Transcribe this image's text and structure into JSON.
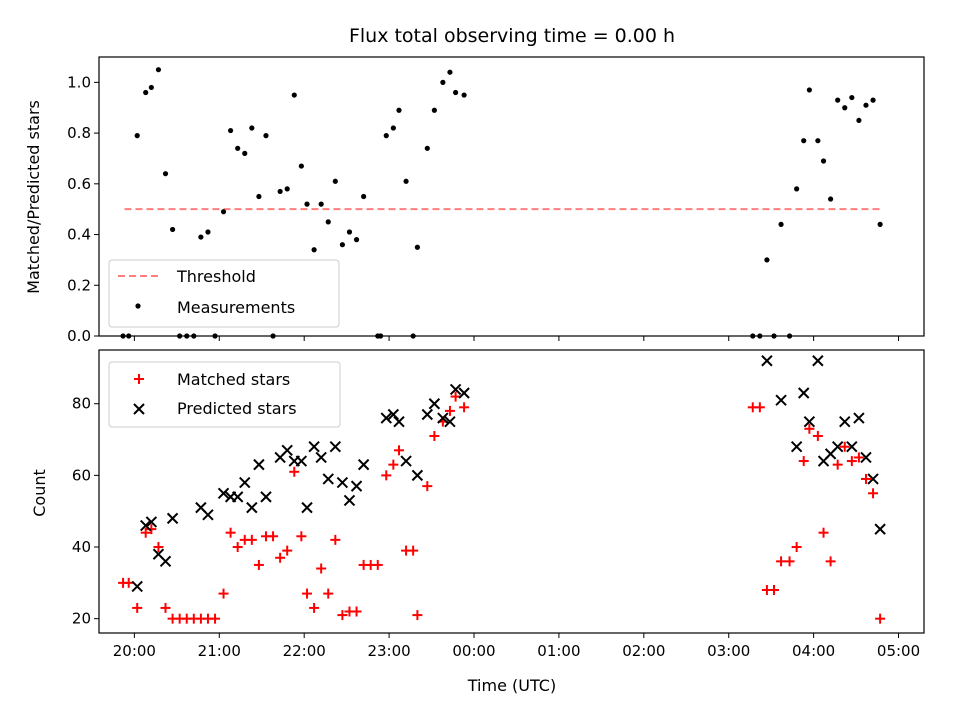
{
  "chart_data": [
    {
      "type": "scatter",
      "title": "Flux total observing time = 0.00 h",
      "xlabel": "",
      "ylabel": "Matched/Predicted stars",
      "xlim": [
        "19:35",
        "05:18"
      ],
      "ylim": [
        0,
        1.1
      ],
      "yticks": [
        0.0,
        0.2,
        0.4,
        0.6,
        0.8,
        1.0
      ],
      "ytick_labels": [
        "0.0",
        "0.2",
        "0.4",
        "0.6",
        "0.8",
        "1.0"
      ],
      "legend_position": "lower-left",
      "threshold": {
        "name": "Threshold",
        "value": 0.5,
        "x_start": "19:53",
        "x_end": "04:47",
        "color": "#ff7f7f",
        "style": "dashed"
      },
      "series": [
        {
          "name": "Measurements",
          "color": "#000000",
          "marker": "dot",
          "points": [
            [
              "19:52",
              0.0
            ],
            [
              "19:56",
              0.0
            ],
            [
              "20:02",
              0.79
            ],
            [
              "20:08",
              0.96
            ],
            [
              "20:12",
              0.98
            ],
            [
              "20:17",
              1.05
            ],
            [
              "20:22",
              0.64
            ],
            [
              "20:27",
              0.42
            ],
            [
              "20:32",
              0.0
            ],
            [
              "20:37",
              0.0
            ],
            [
              "20:42",
              0.0
            ],
            [
              "20:47",
              0.39
            ],
            [
              "20:52",
              0.41
            ],
            [
              "20:57",
              0.0
            ],
            [
              "21:03",
              0.49
            ],
            [
              "21:08",
              0.81
            ],
            [
              "21:13",
              0.74
            ],
            [
              "21:18",
              0.72
            ],
            [
              "21:23",
              0.82
            ],
            [
              "21:28",
              0.55
            ],
            [
              "21:33",
              0.79
            ],
            [
              "21:38",
              0.0
            ],
            [
              "21:43",
              0.57
            ],
            [
              "21:48",
              0.58
            ],
            [
              "21:53",
              0.95
            ],
            [
              "21:58",
              0.67
            ],
            [
              "22:02",
              0.52
            ],
            [
              "22:07",
              0.34
            ],
            [
              "22:12",
              0.52
            ],
            [
              "22:17",
              0.45
            ],
            [
              "22:22",
              0.61
            ],
            [
              "22:27",
              0.36
            ],
            [
              "22:32",
              0.41
            ],
            [
              "22:37",
              0.38
            ],
            [
              "22:42",
              0.55
            ],
            [
              "22:52",
              0.0
            ],
            [
              "22:54",
              0.0
            ],
            [
              "22:58",
              0.79
            ],
            [
              "23:03",
              0.82
            ],
            [
              "23:07",
              0.89
            ],
            [
              "23:12",
              0.61
            ],
            [
              "23:17",
              0.0
            ],
            [
              "23:20",
              0.35
            ],
            [
              "23:27",
              0.74
            ],
            [
              "23:32",
              0.89
            ],
            [
              "23:38",
              1.0
            ],
            [
              "23:43",
              1.04
            ],
            [
              "23:47",
              0.96
            ],
            [
              "23:53",
              0.95
            ],
            [
              "03:17",
              0.0
            ],
            [
              "03:22",
              0.0
            ],
            [
              "03:27",
              0.3
            ],
            [
              "03:32",
              0.0
            ],
            [
              "03:37",
              0.44
            ],
            [
              "03:43",
              0.0
            ],
            [
              "03:48",
              0.58
            ],
            [
              "03:53",
              0.77
            ],
            [
              "03:57",
              0.97
            ],
            [
              "04:03",
              0.77
            ],
            [
              "04:07",
              0.69
            ],
            [
              "04:12",
              0.54
            ],
            [
              "04:17",
              0.93
            ],
            [
              "04:22",
              0.9
            ],
            [
              "04:27",
              0.94
            ],
            [
              "04:32",
              0.85
            ],
            [
              "04:37",
              0.91
            ],
            [
              "04:42",
              0.93
            ],
            [
              "04:47",
              0.44
            ]
          ]
        }
      ]
    },
    {
      "type": "scatter",
      "title": "",
      "xlabel": "Time (UTC)",
      "ylabel": "Count",
      "xlim": [
        "19:35",
        "05:18"
      ],
      "ylim": [
        16,
        95
      ],
      "yticks": [
        20,
        40,
        60,
        80
      ],
      "ytick_labels": [
        "20",
        "40",
        "60",
        "80"
      ],
      "xticks": [
        "20:00",
        "21:00",
        "22:00",
        "23:00",
        "00:00",
        "01:00",
        "02:00",
        "03:00",
        "04:00",
        "05:00"
      ],
      "legend_position": "upper-left",
      "series": [
        {
          "name": "Matched stars",
          "color": "#ff0000",
          "marker": "plus",
          "points": [
            [
              "19:52",
              30
            ],
            [
              "19:56",
              30
            ],
            [
              "20:02",
              23
            ],
            [
              "20:08",
              44
            ],
            [
              "20:12",
              45
            ],
            [
              "20:17",
              40
            ],
            [
              "20:22",
              23
            ],
            [
              "20:27",
              20
            ],
            [
              "20:32",
              20
            ],
            [
              "20:37",
              20
            ],
            [
              "20:42",
              20
            ],
            [
              "20:47",
              20
            ],
            [
              "20:52",
              20
            ],
            [
              "20:57",
              20
            ],
            [
              "21:03",
              27
            ],
            [
              "21:08",
              44
            ],
            [
              "21:13",
              40
            ],
            [
              "21:18",
              42
            ],
            [
              "21:23",
              42
            ],
            [
              "21:28",
              35
            ],
            [
              "21:33",
              43
            ],
            [
              "21:38",
              43
            ],
            [
              "21:43",
              37
            ],
            [
              "21:48",
              39
            ],
            [
              "21:53",
              61
            ],
            [
              "21:58",
              43
            ],
            [
              "22:02",
              27
            ],
            [
              "22:07",
              23
            ],
            [
              "22:12",
              34
            ],
            [
              "22:17",
              27
            ],
            [
              "22:22",
              42
            ],
            [
              "22:27",
              21
            ],
            [
              "22:32",
              22
            ],
            [
              "22:37",
              22
            ],
            [
              "22:42",
              35
            ],
            [
              "22:47",
              35
            ],
            [
              "22:52",
              35
            ],
            [
              "22:58",
              60
            ],
            [
              "23:03",
              63
            ],
            [
              "23:07",
              67
            ],
            [
              "23:12",
              39
            ],
            [
              "23:17",
              39
            ],
            [
              "23:20",
              21
            ],
            [
              "23:27",
              57
            ],
            [
              "23:32",
              71
            ],
            [
              "23:38",
              75
            ],
            [
              "23:43",
              78
            ],
            [
              "23:47",
              82
            ],
            [
              "23:53",
              79
            ],
            [
              "03:17",
              79
            ],
            [
              "03:22",
              79
            ],
            [
              "03:27",
              28
            ],
            [
              "03:32",
              28
            ],
            [
              "03:37",
              36
            ],
            [
              "03:43",
              36
            ],
            [
              "03:48",
              40
            ],
            [
              "03:53",
              64
            ],
            [
              "03:57",
              73
            ],
            [
              "04:03",
              71
            ],
            [
              "04:07",
              44
            ],
            [
              "04:12",
              36
            ],
            [
              "04:17",
              63
            ],
            [
              "04:22",
              68
            ],
            [
              "04:27",
              64
            ],
            [
              "04:32",
              65
            ],
            [
              "04:37",
              59
            ],
            [
              "04:42",
              55
            ],
            [
              "04:47",
              20
            ]
          ]
        },
        {
          "name": "Predicted stars",
          "color": "#000000",
          "marker": "x",
          "points": [
            [
              "20:02",
              29
            ],
            [
              "20:08",
              46
            ],
            [
              "20:12",
              47
            ],
            [
              "20:17",
              38
            ],
            [
              "20:22",
              36
            ],
            [
              "20:27",
              48
            ],
            [
              "20:47",
              51
            ],
            [
              "20:52",
              49
            ],
            [
              "21:03",
              55
            ],
            [
              "21:08",
              54
            ],
            [
              "21:13",
              54
            ],
            [
              "21:18",
              58
            ],
            [
              "21:23",
              51
            ],
            [
              "21:28",
              63
            ],
            [
              "21:33",
              54
            ],
            [
              "21:43",
              65
            ],
            [
              "21:48",
              67
            ],
            [
              "21:53",
              64
            ],
            [
              "21:58",
              64
            ],
            [
              "22:02",
              51
            ],
            [
              "22:07",
              68
            ],
            [
              "22:12",
              65
            ],
            [
              "22:17",
              59
            ],
            [
              "22:22",
              68
            ],
            [
              "22:27",
              58
            ],
            [
              "22:32",
              53
            ],
            [
              "22:37",
              57
            ],
            [
              "22:42",
              63
            ],
            [
              "22:58",
              76
            ],
            [
              "23:03",
              77
            ],
            [
              "23:07",
              75
            ],
            [
              "23:12",
              64
            ],
            [
              "23:20",
              60
            ],
            [
              "23:27",
              77
            ],
            [
              "23:32",
              80
            ],
            [
              "23:38",
              76
            ],
            [
              "23:43",
              75
            ],
            [
              "23:47",
              84
            ],
            [
              "23:53",
              83
            ],
            [
              "03:27",
              92
            ],
            [
              "03:37",
              81
            ],
            [
              "03:48",
              68
            ],
            [
              "03:53",
              83
            ],
            [
              "03:57",
              75
            ],
            [
              "04:03",
              92
            ],
            [
              "04:07",
              64
            ],
            [
              "04:12",
              66
            ],
            [
              "04:17",
              68
            ],
            [
              "04:22",
              75
            ],
            [
              "04:27",
              68
            ],
            [
              "04:32",
              76
            ],
            [
              "04:37",
              65
            ],
            [
              "04:42",
              59
            ],
            [
              "04:47",
              45
            ]
          ]
        }
      ]
    }
  ]
}
